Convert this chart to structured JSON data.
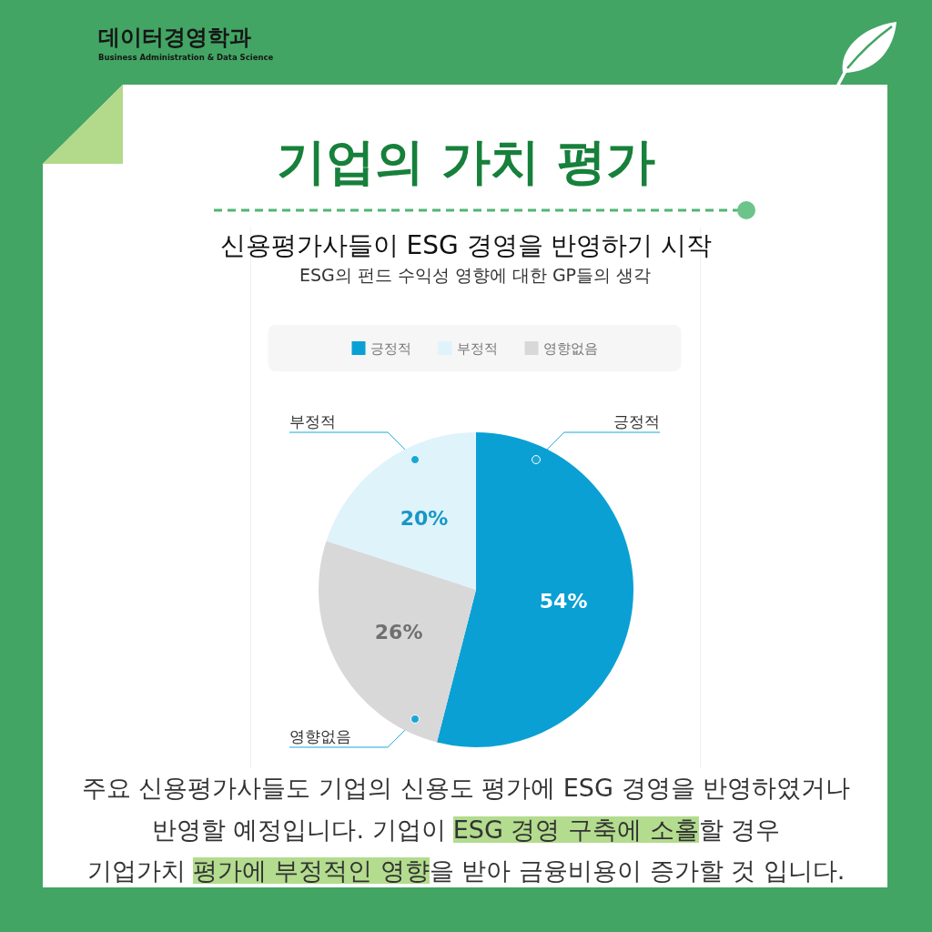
{
  "chart_data": {
    "type": "pie",
    "title": "기업의 가치 평가",
    "subtitle": "신용평가사들이 ESG 경영을 반영하기 시작",
    "annotations": [
      "데이터경영학과",
      "Business Administration & Data Science",
      "ESG의 펀드 수익성 영향에 대한 GP들의 생각",
      "주요 신용평가사들도 기업의 신용도 평가에 ESG 경영을 반영하였거나",
      "반영할 예정입니다. 기업이",
      "ESG 경영 구축에 소홀",
      "할 경우",
      "기업가치",
      "평가에 부정적인 영향",
      "을 받아 금융비용이 증가할 것 입니다."
    ],
    "categories": [
      "긍정적",
      "부정적",
      "영향없음"
    ],
    "values": [
      54,
      20,
      26
    ],
    "colors": [
      "#0aa0d4",
      "#dff3fb",
      "#d8d8d8"
    ],
    "value_labels": [
      "54%",
      "20%",
      "26%"
    ],
    "legend": "top"
  }
}
